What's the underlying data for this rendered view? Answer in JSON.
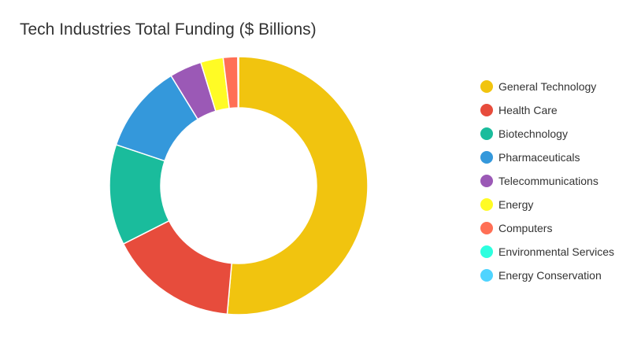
{
  "chart_data": {
    "type": "pie",
    "variant": "donut",
    "title": "Tech Industries Total Funding ($ Billions)",
    "legend_position": "right",
    "categories": [
      "General Technology",
      "Health Care",
      "Biotechnology",
      "Pharmaceuticals",
      "Telecommunications",
      "Energy",
      "Computers",
      "Environmental Services",
      "Energy Conservation"
    ],
    "values": [
      51.0,
      16.0,
      12.5,
      11.0,
      4.0,
      2.8,
      1.8,
      0.05,
      0.05
    ],
    "colors": [
      "#f1c40f",
      "#e74c3c",
      "#1abc9c",
      "#3498db",
      "#9b59b6",
      "#fffb25",
      "#ff6f55",
      "#2dffdf",
      "#4fd4ff"
    ]
  }
}
